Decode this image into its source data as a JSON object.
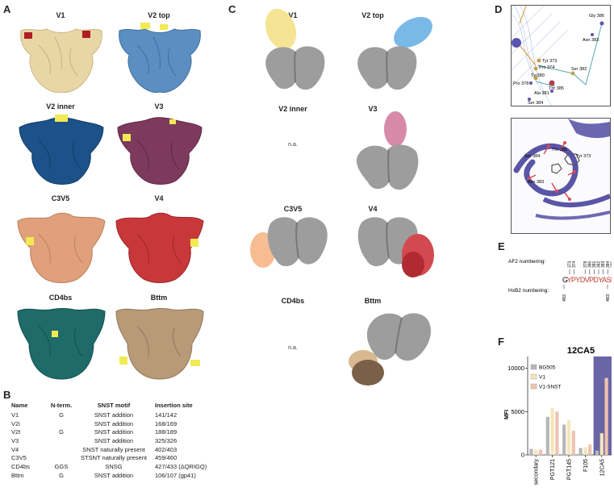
{
  "panels": {
    "A": "A",
    "B": "B",
    "C": "C",
    "D": "D",
    "E": "E",
    "F": "F"
  },
  "panelA": {
    "labels": [
      "V1",
      "V2 top",
      "V2 inner",
      "V3",
      "C3V5",
      "V4",
      "CD4bs",
      "Bttm"
    ],
    "colors": [
      "#e8d6a6",
      "#5b8fc2",
      "#1c5289",
      "#7d3a5c",
      "#e0a07b",
      "#c8383a",
      "#1f6b6a",
      "#b89a78"
    ]
  },
  "panelB": {
    "headers": [
      "Name",
      "N-term.",
      "SNST motif",
      "Insertion site"
    ],
    "rows": [
      [
        "V1",
        "G",
        "SNST addition",
        "141/142"
      ],
      [
        "V2i",
        "",
        "SNST addition",
        "168/169"
      ],
      [
        "V2t",
        "G",
        "SNST addition",
        "188/189"
      ],
      [
        "V3",
        "",
        "SNST addition",
        "325/326"
      ],
      [
        "V4",
        "",
        "SNST naturally present",
        "402/403"
      ],
      [
        "C3V5",
        "",
        "STSNT naturally present",
        "459/460"
      ],
      [
        "CD4bs",
        "GGS",
        "SNSG",
        "427/433 (ΔQRIGQ)"
      ],
      [
        "Bttm",
        "G",
        "SNST addition",
        "106/107 (gp41)"
      ]
    ]
  },
  "panelC": {
    "labels": [
      "V1",
      "V2 top",
      "V2 inner",
      "V3",
      "C3V5",
      "V4",
      "CD4bs",
      "Bttm"
    ],
    "na": "n.a.",
    "blob_colors": [
      "#f5e493",
      "#7ab9e6",
      "",
      "#d68aa8",
      "#f7bd92",
      "#d24a4f",
      "",
      "#a78a6c"
    ]
  },
  "panelD": {
    "top_labels": [
      "Gly 386",
      "Asn 383",
      "Tyr 373",
      "Pro 374",
      "Ser 382",
      "Tyr380",
      "Pro 378",
      "Thr 385",
      "Ala 381",
      "Ser 384"
    ],
    "bottom_labels": [
      "Thr 385",
      "Ser 384",
      "Tyr 373",
      "Asn 383"
    ]
  },
  "panelE": {
    "af2_label": "AF2 numbering:",
    "hxb2_label": "HxB2 numbering:",
    "af2_numbers": [
      "373",
      "374",
      "378",
      "380",
      "381",
      "382",
      "383",
      "384",
      "385"
    ],
    "hxb2_left": "482",
    "hxb2_right": "483",
    "seq_g": "G",
    "seq_red": "YPYDVPDYASNST"
  },
  "panelF": {
    "title": "12CA5",
    "ylabel": "MFI",
    "highlight_color": "#6a66a6"
  },
  "chart_data": {
    "type": "bar",
    "title": "12CA5",
    "xlabel": "",
    "ylabel": "MFI",
    "ylim": [
      0,
      11000
    ],
    "yticks": [
      0,
      5000,
      10000
    ],
    "categories": [
      "secondary",
      "PGT121",
      "PGT145",
      "F105",
      "12CA5"
    ],
    "series": [
      {
        "name": "BG505",
        "color": "#b7b7b7",
        "values": [
          700,
          4400,
          3500,
          800,
          500
        ]
      },
      {
        "name": "V1",
        "color": "#f5e6b8",
        "values": [
          600,
          5400,
          4000,
          900,
          2500
        ]
      },
      {
        "name": "V1-SNST",
        "color": "#eec3b0",
        "values": [
          600,
          5000,
          2800,
          1200,
          8900
        ]
      }
    ],
    "legend": "top-left"
  }
}
